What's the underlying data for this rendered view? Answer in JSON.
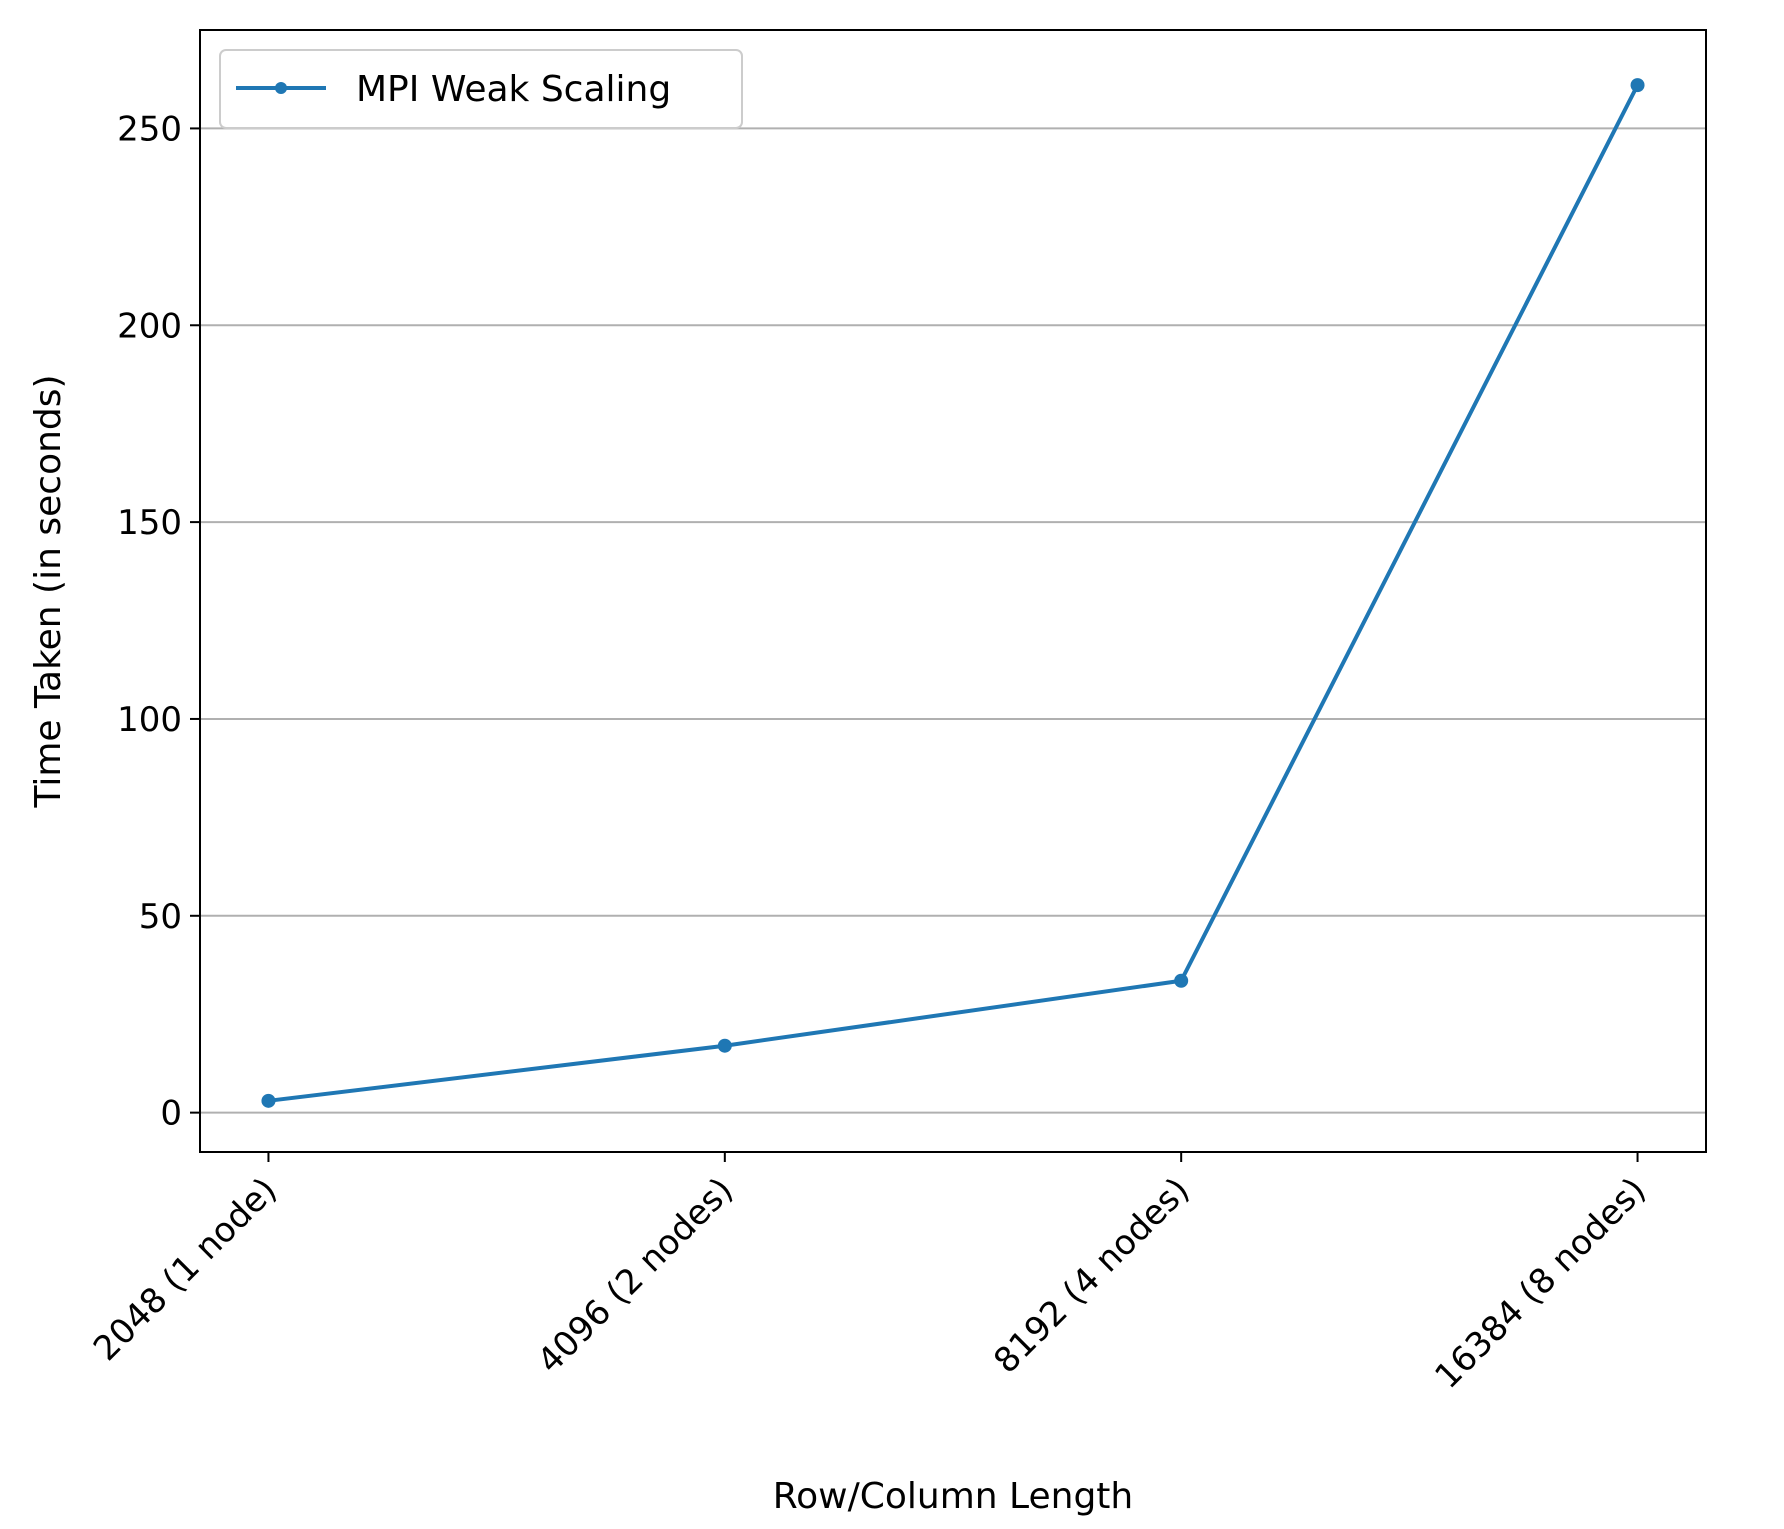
{
  "chart_data": {
    "type": "line",
    "title": "",
    "xlabel": "Row/Column Length",
    "ylabel": "Time Taken (in seconds)",
    "categories": [
      "2048 (1 node)",
      "4096 (2 nodes)",
      "8192 (4 nodes)",
      "16384 (8 nodes)"
    ],
    "series": [
      {
        "name": "MPI Weak Scaling",
        "color": "#1f77b4",
        "marker": "circle",
        "values": [
          3,
          17,
          33.5,
          261
        ]
      }
    ],
    "ylim": [
      -10,
      275
    ],
    "yticks": [
      0,
      50,
      100,
      150,
      200,
      250
    ],
    "grid": {
      "y": true,
      "x": false
    },
    "legend_position": "top-left",
    "x_tick_rotation": 45
  }
}
